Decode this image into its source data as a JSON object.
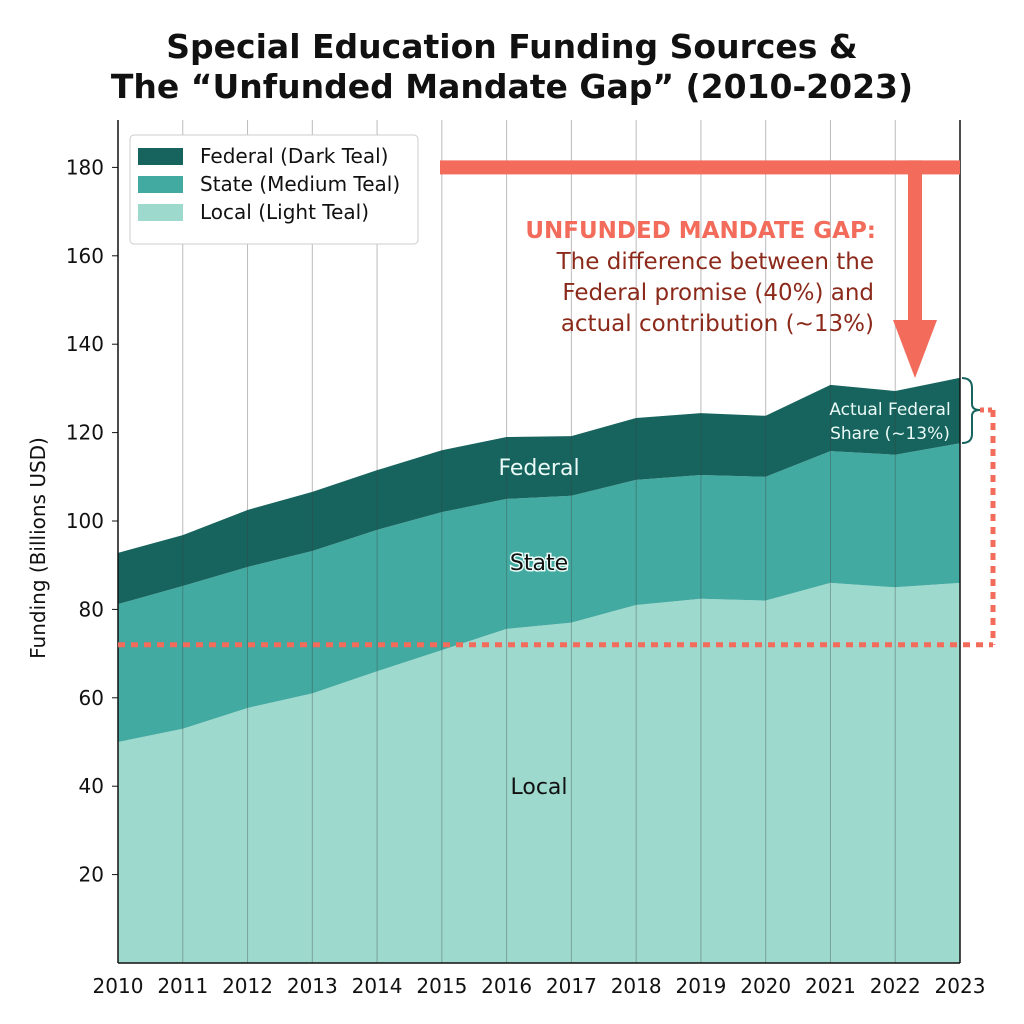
{
  "chart_data": {
    "type": "area",
    "stacked": true,
    "title": [
      "Special Education Funding Sources &",
      "The “Unfunded Mandate Gap” (2010-2023)"
    ],
    "xlabel": "",
    "ylabel": "Funding (Billions USD)",
    "x": [
      2010,
      2011,
      2012,
      2013,
      2014,
      2015,
      2016,
      2017,
      2018,
      2019,
      2020,
      2021,
      2022,
      2023
    ],
    "ylim": [
      0,
      190
    ],
    "yticks": [
      20,
      40,
      60,
      80,
      100,
      120,
      140,
      160,
      180
    ],
    "grid": "vertical",
    "legend_position": "top-left",
    "series": [
      {
        "name": "Local (Light Teal)",
        "label": "Local",
        "color": "#9dd9cc",
        "values": [
          50,
          53,
          57.7,
          61,
          66,
          70.8,
          75.6,
          77,
          81,
          82.4,
          82,
          86,
          85,
          86
        ]
      },
      {
        "name": "State (Medium Teal)",
        "label": "State",
        "color": "#43aaa2",
        "values": [
          31.2,
          32.3,
          31.9,
          32.2,
          32,
          31.2,
          29.4,
          28.7,
          28.3,
          28,
          28,
          29.8,
          30,
          31.6
        ]
      },
      {
        "name": "Federal (Dark Teal)",
        "label": "Federal",
        "color": "#17645e",
        "values": [
          11.6,
          11.5,
          12.9,
          13.4,
          13.5,
          14,
          14,
          13.5,
          14,
          14,
          13.8,
          15,
          14.4,
          14.8
        ]
      }
    ],
    "annotations": {
      "gap_heading": "UNFUNDED MANDATE GAP:",
      "gap_lines": [
        "The difference between the",
        "Federal promise (40%) and",
        "actual contribution (~13%)"
      ],
      "federal_share_lines": [
        "Actual Federal",
        "Share (~13%)"
      ],
      "promise_level": 180,
      "reference_level": 72,
      "accent_color": "#f26b5b",
      "text_color": "#8b2a1a"
    }
  }
}
